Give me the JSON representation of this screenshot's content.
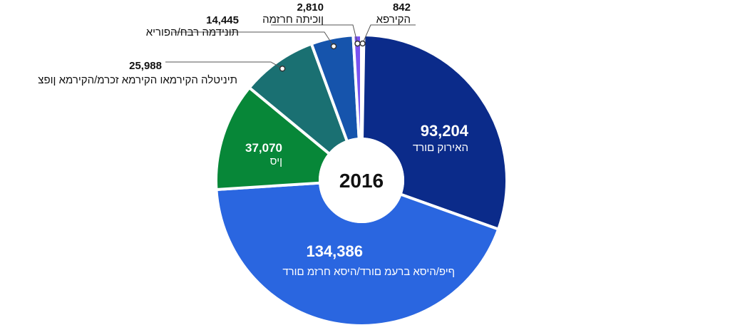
{
  "chart_data": {
    "type": "pie",
    "variant": "donut",
    "center_label": "2016",
    "slices": [
      {
        "label": "הקירפא",
        "value": 842,
        "display_value": "842",
        "color": "#3d86c6"
      },
      {
        "label": "האירוק םורד",
        "value": 93204,
        "display_value": "93,204",
        "color": "#0b2b8a"
      },
      {
        "label": "ףיפ/היסא ברעמ םורד/היסא חרזמ םורד",
        "value": 134386,
        "display_value": "134,386",
        "color": "#2a66e0"
      },
      {
        "label": "ןיס",
        "value": 37070,
        "display_value": "37,070",
        "color": "#078738"
      },
      {
        "label": "תיניטלה הקירמאו הקירמא זכרמ/הקירמא ןופצ",
        "value": 25988,
        "display_value": "25,988",
        "color": "#1a7072"
      },
      {
        "label": "תונידמה רבח/הפוריא",
        "value": 14445,
        "display_value": "14,445",
        "color": "#1654ac"
      },
      {
        "label": "ןוכיתה חרזמה",
        "value": 2810,
        "display_value": "2,810",
        "color": "#7a52f0"
      }
    ]
  }
}
